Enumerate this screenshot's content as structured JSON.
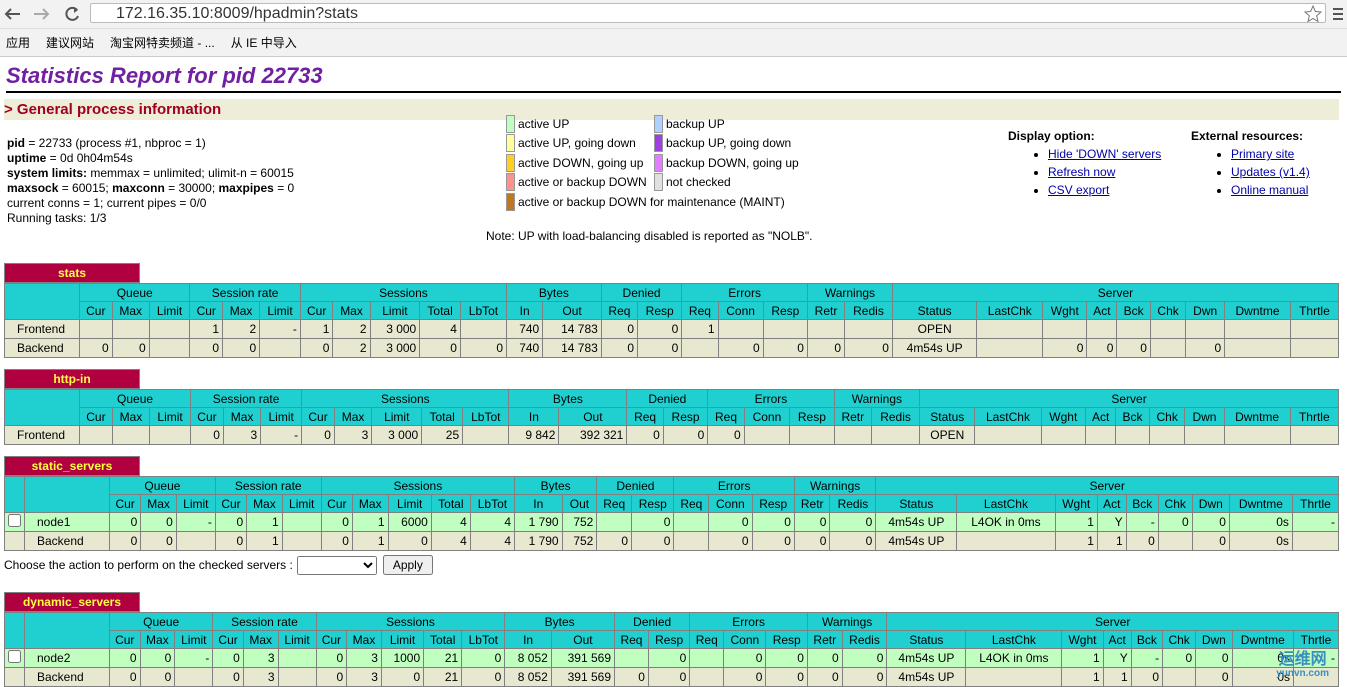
{
  "browser": {
    "url": "172.16.35.10:8009/hpadmin?stats",
    "bookmarks": [
      "应用",
      "建议网站",
      "淘宝网特卖频道 - ...",
      "从 IE 中导入"
    ]
  },
  "title": "Statistics Report for pid 22733",
  "section": "> General process information",
  "info": [
    [
      {
        "b": "pid"
      },
      {
        "t": " = 22733 (process #1, nbproc = 1)"
      }
    ],
    [
      {
        "b": "uptime"
      },
      {
        "t": " = 0d 0h04m54s"
      }
    ],
    [
      {
        "b": "system limits:"
      },
      {
        "t": " memmax = unlimited; ulimit-n = 60015"
      }
    ],
    [
      {
        "b": "maxsock"
      },
      {
        "t": " = 60015; "
      },
      {
        "b": "maxconn"
      },
      {
        "t": " = 30000; "
      },
      {
        "b": "maxpipes"
      },
      {
        "t": " = 0"
      }
    ],
    [
      {
        "t": "current conns = 1; current pipes = 0/0"
      }
    ],
    [
      {
        "t": "Running tasks: 1/3"
      }
    ]
  ],
  "legend": [
    {
      "text": "active UP",
      "color": "#c0ffc0"
    },
    {
      "text": "active UP, going down",
      "color": "#ffffa0"
    },
    {
      "text": "active DOWN, going up",
      "color": "#ffd020"
    },
    {
      "text": "active or backup DOWN",
      "color": "#ff9090"
    },
    {
      "text": "active or backup DOWN for maintenance (MAINT)",
      "color": "#c07820"
    },
    {
      "text": "backup UP",
      "color": "#b0d0ff"
    },
    {
      "text": "backup UP, going down",
      "color": "#a040e0"
    },
    {
      "text": "backup DOWN, going up",
      "color": "#e080ff"
    },
    {
      "text": "not checked",
      "color": "#e0e0e0"
    }
  ],
  "note": "Note: UP with load-balancing disabled is reported as \"NOLB\".",
  "display": {
    "title": "Display option:",
    "links": [
      "Hide 'DOWN' servers",
      "Refresh now",
      "CSV export"
    ]
  },
  "external": {
    "title": "External resources:",
    "links": [
      "Primary site",
      "Updates (v1.4)",
      "Online manual"
    ]
  },
  "action": {
    "label": "Choose the action to perform on the checked servers :",
    "button": "Apply"
  },
  "columns": [
    {
      "group": "Queue",
      "cols": [
        "Cur",
        "Max",
        "Limit"
      ]
    },
    {
      "group": "Session rate",
      "cols": [
        "Cur",
        "Max",
        "Limit"
      ]
    },
    {
      "group": "Sessions",
      "cols": [
        "Cur",
        "Max",
        "Limit",
        "Total",
        "LbTot"
      ]
    },
    {
      "group": "Bytes",
      "cols": [
        "In",
        "Out"
      ]
    },
    {
      "group": "Denied",
      "cols": [
        "Req",
        "Resp"
      ]
    },
    {
      "group": "Errors",
      "cols": [
        "Req",
        "Conn",
        "Resp"
      ]
    },
    {
      "group": "Warnings",
      "cols": [
        "Retr",
        "Redis"
      ]
    },
    {
      "group": "Server",
      "cols": [
        "Status",
        "LastChk",
        "Wght",
        "Act",
        "Bck",
        "Chk",
        "Dwn",
        "Dwntme",
        "Thrtle"
      ]
    }
  ],
  "tables": [
    {
      "name": "stats",
      "checkbox": false,
      "action": false,
      "rows": [
        {
          "name": "Frontend",
          "color": "#e8e8d0",
          "check": false,
          "cells": [
            null,
            null,
            null,
            "1",
            "2",
            "-",
            "1",
            "2",
            "3 000",
            "4",
            null,
            "740",
            "14 783",
            "0",
            "0",
            "1",
            null,
            null,
            null,
            null,
            "OPEN",
            null,
            null,
            null,
            null,
            null,
            null,
            null,
            null
          ]
        },
        {
          "name": "Backend",
          "color": "#e8e8d0",
          "check": false,
          "cells": [
            "0",
            "0",
            null,
            "0",
            "0",
            null,
            "0",
            "2",
            "3 000",
            "0",
            "0",
            "740",
            "14 783",
            "0",
            "0",
            null,
            "0",
            "0",
            "0",
            "0",
            "4m54s UP",
            null,
            "0",
            "0",
            "0",
            null,
            "0",
            null,
            null
          ]
        }
      ]
    },
    {
      "name": "http-in",
      "checkbox": false,
      "action": false,
      "rows": [
        {
          "name": "Frontend",
          "color": "#e8e8d0",
          "check": false,
          "cells": [
            null,
            null,
            null,
            "0",
            "3",
            "-",
            "0",
            "3",
            "3 000",
            "25",
            null,
            "9 842",
            "392 321",
            "0",
            "0",
            "0",
            null,
            null,
            null,
            null,
            "OPEN",
            null,
            null,
            null,
            null,
            null,
            null,
            null,
            null
          ]
        }
      ]
    },
    {
      "name": "static_servers",
      "checkbox": true,
      "action": true,
      "rows": [
        {
          "name": "node1",
          "color": "#c0ffc0",
          "check": true,
          "cells": [
            "0",
            "0",
            "-",
            "0",
            "1",
            null,
            "0",
            "1",
            "6000",
            "4",
            "4",
            "1 790",
            "752",
            null,
            "0",
            null,
            "0",
            "0",
            "0",
            "0",
            "4m54s UP",
            "L4OK in 0ms",
            "1",
            "Y",
            "-",
            "0",
            "0",
            "0s",
            "-"
          ]
        },
        {
          "name": "Backend",
          "color": "#e8e8d0",
          "check": false,
          "cells": [
            "0",
            "0",
            null,
            "0",
            "1",
            null,
            "0",
            "1",
            "0",
            "4",
            "4",
            "1 790",
            "752",
            "0",
            "0",
            null,
            "0",
            "0",
            "0",
            "0",
            "4m54s UP",
            null,
            "1",
            "1",
            "0",
            null,
            "0",
            "0s",
            null
          ]
        }
      ]
    },
    {
      "name": "dynamic_servers",
      "checkbox": true,
      "action": true,
      "rows": [
        {
          "name": "node2",
          "color": "#c0ffc0",
          "check": true,
          "cells": [
            "0",
            "0",
            "-",
            "0",
            "3",
            null,
            "0",
            "3",
            "1000",
            "21",
            "0",
            "8 052",
            "391 569",
            null,
            "0",
            null,
            "0",
            "0",
            "0",
            "0",
            "4m54s UP",
            "L4OK in 0ms",
            "1",
            "Y",
            "-",
            "0",
            "0",
            "0s",
            "-"
          ]
        },
        {
          "name": "Backend",
          "color": "#e8e8d0",
          "check": false,
          "cells": [
            "0",
            "0",
            null,
            "0",
            "3",
            null,
            "0",
            "3",
            "0",
            "21",
            "0",
            "8 052",
            "391 569",
            "0",
            "0",
            null,
            "0",
            "0",
            "0",
            "0",
            "4m54s UP",
            null,
            "1",
            "1",
            "0",
            null,
            "0",
            "0s",
            null
          ]
        }
      ]
    }
  ],
  "watermark": {
    "name": "运维网",
    "site": "yunvn.com"
  }
}
